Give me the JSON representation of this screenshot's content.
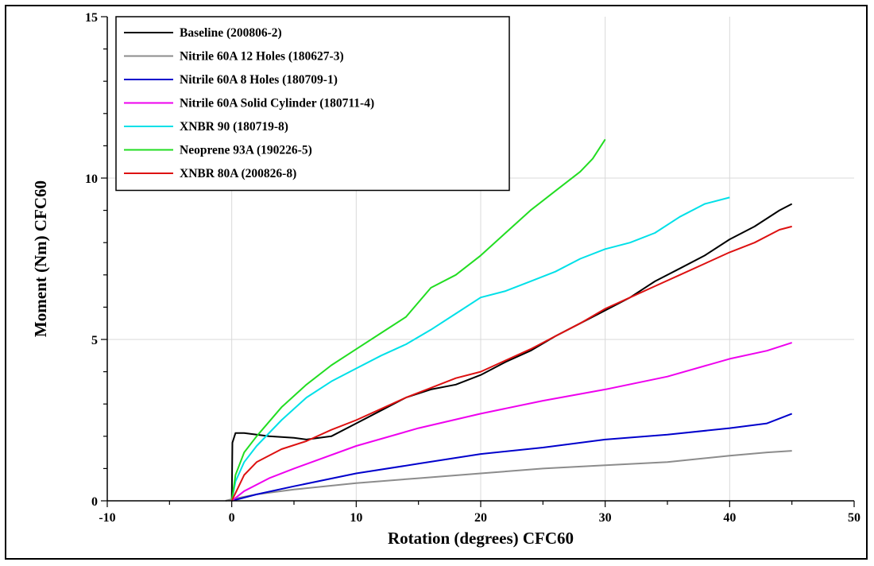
{
  "chart_data": {
    "type": "line",
    "title": "",
    "xlabel": "Rotation (degrees) CFC60",
    "ylabel": "Moment (Nm) CFC60",
    "xlim": [
      -10,
      50
    ],
    "ylim": [
      0,
      15
    ],
    "xticks": [
      -10,
      0,
      10,
      20,
      30,
      40,
      50
    ],
    "yticks": [
      0,
      5,
      10,
      15
    ],
    "grid": true,
    "legend_position": "top-left",
    "series": [
      {
        "name": "Baseline (200806-2)",
        "color": "#000000",
        "points": [
          [
            0,
            0
          ],
          [
            0.05,
            1.8
          ],
          [
            0.3,
            2.1
          ],
          [
            1,
            2.1
          ],
          [
            3,
            2.0
          ],
          [
            5,
            1.95
          ],
          [
            6,
            1.9
          ],
          [
            8,
            2.0
          ],
          [
            10,
            2.4
          ],
          [
            12,
            2.8
          ],
          [
            14,
            3.2
          ],
          [
            16,
            3.45
          ],
          [
            18,
            3.6
          ],
          [
            20,
            3.9
          ],
          [
            22,
            4.3
          ],
          [
            24,
            4.65
          ],
          [
            26,
            5.1
          ],
          [
            28,
            5.5
          ],
          [
            30,
            5.9
          ],
          [
            32,
            6.3
          ],
          [
            34,
            6.8
          ],
          [
            36,
            7.2
          ],
          [
            38,
            7.6
          ],
          [
            40,
            8.1
          ],
          [
            42,
            8.5
          ],
          [
            44,
            9.0
          ],
          [
            45,
            9.2
          ]
        ]
      },
      {
        "name": "Nitrile 60A 12 Holes (180627-3)",
        "color": "#8c8c8c",
        "points": [
          [
            -0.5,
            0
          ],
          [
            0,
            0.05
          ],
          [
            2,
            0.2
          ],
          [
            5,
            0.35
          ],
          [
            10,
            0.55
          ],
          [
            15,
            0.7
          ],
          [
            20,
            0.85
          ],
          [
            25,
            1.0
          ],
          [
            30,
            1.1
          ],
          [
            35,
            1.2
          ],
          [
            40,
            1.4
          ],
          [
            43,
            1.5
          ],
          [
            45,
            1.55
          ]
        ]
      },
      {
        "name": "Nitrile 60A 8 Holes (180709-1)",
        "color": "#0000cc",
        "points": [
          [
            0,
            0
          ],
          [
            2,
            0.2
          ],
          [
            5,
            0.45
          ],
          [
            10,
            0.85
          ],
          [
            15,
            1.15
          ],
          [
            20,
            1.45
          ],
          [
            25,
            1.65
          ],
          [
            30,
            1.9
          ],
          [
            35,
            2.05
          ],
          [
            40,
            2.25
          ],
          [
            43,
            2.4
          ],
          [
            45,
            2.7
          ]
        ]
      },
      {
        "name": "Nitrile 60A Solid Cylinder (180711-4)",
        "color": "#ee00ee",
        "points": [
          [
            0,
            0
          ],
          [
            1,
            0.3
          ],
          [
            3,
            0.7
          ],
          [
            5,
            1.0
          ],
          [
            10,
            1.7
          ],
          [
            15,
            2.25
          ],
          [
            20,
            2.7
          ],
          [
            25,
            3.1
          ],
          [
            30,
            3.45
          ],
          [
            35,
            3.85
          ],
          [
            40,
            4.4
          ],
          [
            43,
            4.65
          ],
          [
            45,
            4.9
          ]
        ]
      },
      {
        "name": "XNBR 90 (180719-8)",
        "color": "#00e0e8",
        "points": [
          [
            0,
            0
          ],
          [
            0.3,
            0.6
          ],
          [
            1,
            1.2
          ],
          [
            2,
            1.7
          ],
          [
            4,
            2.5
          ],
          [
            6,
            3.2
          ],
          [
            8,
            3.7
          ],
          [
            10,
            4.1
          ],
          [
            12,
            4.5
          ],
          [
            14,
            4.85
          ],
          [
            16,
            5.3
          ],
          [
            18,
            5.8
          ],
          [
            20,
            6.3
          ],
          [
            22,
            6.5
          ],
          [
            24,
            6.8
          ],
          [
            26,
            7.1
          ],
          [
            28,
            7.5
          ],
          [
            30,
            7.8
          ],
          [
            32,
            8.0
          ],
          [
            34,
            8.3
          ],
          [
            36,
            8.8
          ],
          [
            38,
            9.2
          ],
          [
            40,
            9.4
          ]
        ]
      },
      {
        "name": "Neoprene 93A (190226-5)",
        "color": "#22dd22",
        "points": [
          [
            0,
            0
          ],
          [
            0.3,
            0.8
          ],
          [
            1,
            1.5
          ],
          [
            2,
            2.0
          ],
          [
            4,
            2.9
          ],
          [
            6,
            3.6
          ],
          [
            8,
            4.2
          ],
          [
            10,
            4.7
          ],
          [
            12,
            5.2
          ],
          [
            14,
            5.7
          ],
          [
            16,
            6.6
          ],
          [
            18,
            7.0
          ],
          [
            20,
            7.6
          ],
          [
            22,
            8.3
          ],
          [
            24,
            9.0
          ],
          [
            26,
            9.6
          ],
          [
            28,
            10.2
          ],
          [
            29,
            10.6
          ],
          [
            30,
            11.2
          ]
        ]
      },
      {
        "name": "XNBR 80A (200826-8)",
        "color": "#dd1111",
        "points": [
          [
            0,
            0
          ],
          [
            0.5,
            0.4
          ],
          [
            1,
            0.8
          ],
          [
            2,
            1.2
          ],
          [
            4,
            1.6
          ],
          [
            6,
            1.85
          ],
          [
            8,
            2.2
          ],
          [
            10,
            2.5
          ],
          [
            12,
            2.85
          ],
          [
            14,
            3.2
          ],
          [
            16,
            3.5
          ],
          [
            18,
            3.8
          ],
          [
            20,
            4.0
          ],
          [
            22,
            4.35
          ],
          [
            24,
            4.7
          ],
          [
            26,
            5.1
          ],
          [
            28,
            5.5
          ],
          [
            30,
            5.95
          ],
          [
            32,
            6.3
          ],
          [
            34,
            6.65
          ],
          [
            36,
            7.0
          ],
          [
            38,
            7.35
          ],
          [
            40,
            7.7
          ],
          [
            42,
            8.0
          ],
          [
            44,
            8.4
          ],
          [
            45,
            8.5
          ]
        ]
      }
    ]
  }
}
